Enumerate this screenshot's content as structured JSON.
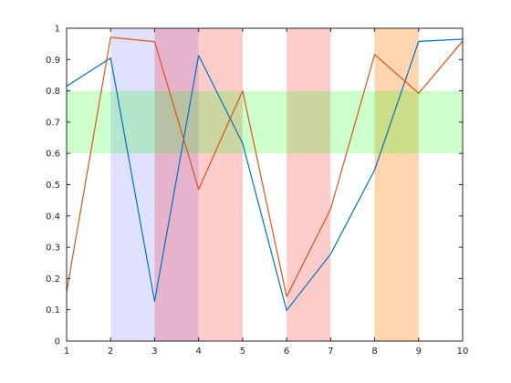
{
  "chart_data": {
    "type": "line",
    "title": "",
    "xlabel": "",
    "ylabel": "",
    "xlim": [
      1,
      10
    ],
    "ylim": [
      0,
      1
    ],
    "xticks": [
      "1",
      "2",
      "3",
      "4",
      "5",
      "6",
      "7",
      "8",
      "9",
      "10"
    ],
    "yticks": [
      "0",
      "0.1",
      "0.2",
      "0.3",
      "0.4",
      "0.5",
      "0.6",
      "0.7",
      "0.8",
      "0.9",
      "1"
    ],
    "grid": false,
    "legend": "none",
    "x": [
      1,
      2,
      3,
      4,
      5,
      6,
      7,
      8,
      9,
      10
    ],
    "series": [
      {
        "color": "#0072bd",
        "values": [
          0.815,
          0.905,
          0.127,
          0.913,
          0.632,
          0.098,
          0.278,
          0.547,
          0.958,
          0.965
        ]
      },
      {
        "color": "#d95319",
        "values": [
          0.158,
          0.971,
          0.957,
          0.485,
          0.8,
          0.142,
          0.422,
          0.916,
          0.792,
          0.959
        ]
      }
    ],
    "vertical_bands": [
      {
        "x": [
          2,
          4
        ],
        "color": "#0000ff",
        "opacity": 0.12
      },
      {
        "x": [
          3,
          5
        ],
        "color": "#ff0000",
        "opacity": 0.2
      },
      {
        "x": [
          6,
          7
        ],
        "color": "#ff0000",
        "opacity": 0.2
      },
      {
        "x": [
          8,
          9
        ],
        "color": "#ff8000",
        "opacity": 0.32
      }
    ],
    "horizontal_bands": [
      {
        "y": [
          0.6,
          0.8
        ],
        "color": "#00ff00",
        "opacity": 0.2
      }
    ]
  }
}
